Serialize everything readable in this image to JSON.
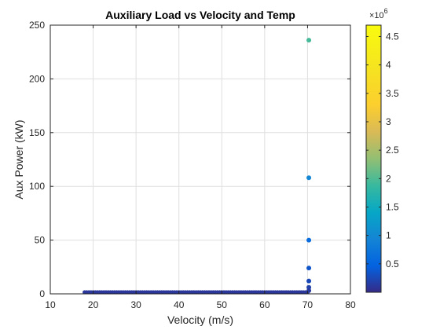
{
  "chart_data": {
    "type": "scatter",
    "title": "Auxiliary Load vs Velocity and Temp",
    "xlabel": "Velocity (m/s)",
    "ylabel": "Aux Power (kW)",
    "xlim": [
      10,
      80
    ],
    "ylim": [
      0,
      250
    ],
    "xticks": [
      10,
      20,
      30,
      40,
      50,
      60,
      70,
      80
    ],
    "yticks": [
      0,
      50,
      100,
      150,
      200,
      250
    ],
    "grid": true,
    "colormap": "parula",
    "colorbar": {
      "location": "right",
      "clim": [
        0,
        4.7
      ],
      "exponent_label": "×10",
      "exponent": "6",
      "ticks": [
        0.5,
        1,
        1.5,
        2,
        2.5,
        3,
        3.5,
        4,
        4.5
      ],
      "tick_labels": [
        "0.5",
        "1",
        "1.5",
        "2",
        "2.5",
        "3",
        "3.5",
        "4",
        "4.5"
      ]
    },
    "baseline_series": {
      "x_start": 18,
      "x_end": 70,
      "x_step": 0.5,
      "y": 1.5,
      "c": 0.1
    },
    "points": [
      {
        "x": 70.3,
        "y": 236,
        "c": 1.95
      },
      {
        "x": 70.3,
        "y": 108,
        "c": 0.95
      },
      {
        "x": 70.3,
        "y": 50,
        "c": 0.6
      },
      {
        "x": 70.3,
        "y": 24,
        "c": 0.35
      },
      {
        "x": 70.3,
        "y": 12,
        "c": 0.25
      },
      {
        "x": 70.3,
        "y": 6,
        "c": 0.18
      },
      {
        "x": 70.3,
        "y": 3,
        "c": 0.12
      }
    ]
  }
}
